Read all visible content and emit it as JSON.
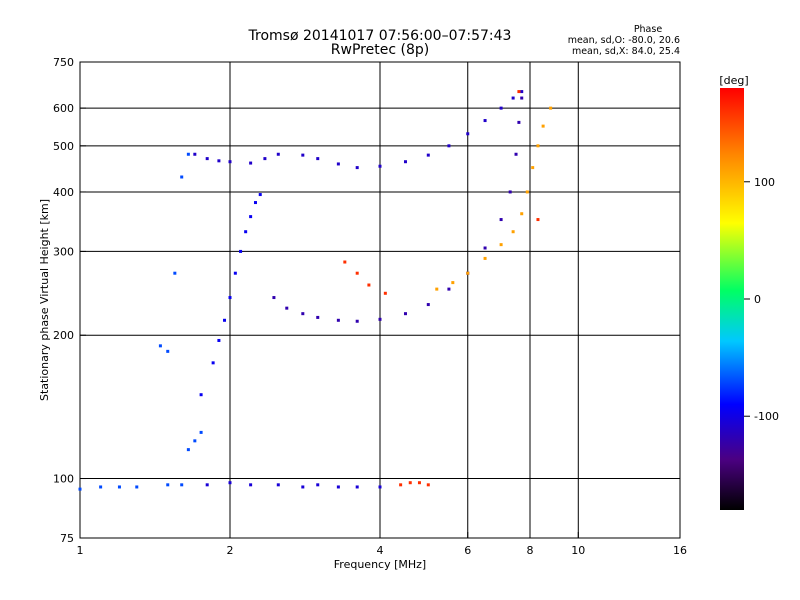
{
  "chart_data": {
    "type": "scatter",
    "title": "Tromsø 20141017 07:56:00–07:57:43",
    "subtitle": "RwPretec (8p)",
    "xlabel": "Frequency [MHz]",
    "ylabel": "Stationary phase Virtual Height [km]",
    "x_scale": "log2",
    "y_scale": "log",
    "xlim": [
      1,
      16
    ],
    "ylim": [
      75,
      750
    ],
    "x_ticks": [
      "1",
      "2",
      "4",
      "6",
      "8",
      "10",
      "16"
    ],
    "y_ticks": [
      "750",
      "600",
      "500",
      "400",
      "300",
      "200",
      "100",
      "75"
    ],
    "grid": true,
    "phase_stats": {
      "title": "Phase",
      "line1": "mean, sd,O:  -80.0, 20.6",
      "line2": "mean, sd,X:   84.0, 25.4"
    },
    "colorbar": {
      "unit": "[deg]",
      "range": [
        -180,
        180
      ],
      "ticks": [
        "100",
        "0",
        "-100"
      ]
    },
    "series": [
      {
        "name": "",
        "phase": -110,
        "points": [
          [
            1.7,
            480
          ],
          [
            1.8,
            470
          ],
          [
            1.9,
            465
          ],
          [
            2.0,
            463
          ],
          [
            2.2,
            460
          ],
          [
            2.35,
            470
          ],
          [
            2.5,
            480
          ],
          [
            2.8,
            478
          ],
          [
            3.0,
            470
          ],
          [
            3.3,
            458
          ],
          [
            3.6,
            450
          ],
          [
            4.0,
            453
          ],
          [
            4.5,
            463
          ],
          [
            5.0,
            478
          ],
          [
            5.5,
            500
          ],
          [
            6.0,
            530
          ],
          [
            6.5,
            565
          ],
          [
            7.0,
            600
          ],
          [
            7.4,
            630
          ],
          [
            7.7,
            650
          ]
        ]
      },
      {
        "name": "",
        "phase": -120,
        "points": [
          [
            2.45,
            240
          ],
          [
            2.6,
            228
          ],
          [
            2.8,
            222
          ],
          [
            3.0,
            218
          ],
          [
            3.3,
            215
          ],
          [
            3.6,
            214
          ],
          [
            4.0,
            216
          ],
          [
            4.5,
            222
          ],
          [
            5.0,
            232
          ],
          [
            5.5,
            250
          ],
          [
            6.0,
            270
          ],
          [
            6.5,
            305
          ],
          [
            7.0,
            350
          ],
          [
            7.3,
            400
          ],
          [
            7.5,
            480
          ],
          [
            7.6,
            560
          ],
          [
            7.7,
            630
          ]
        ]
      },
      {
        "name": "",
        "phase": -95,
        "points": [
          [
            1.75,
            150
          ],
          [
            1.85,
            175
          ],
          [
            1.9,
            195
          ],
          [
            1.95,
            215
          ],
          [
            2.0,
            240
          ],
          [
            2.05,
            270
          ],
          [
            2.1,
            300
          ],
          [
            2.15,
            330
          ],
          [
            2.2,
            355
          ],
          [
            2.25,
            380
          ],
          [
            2.3,
            395
          ]
        ]
      },
      {
        "name": "",
        "phase": -70,
        "points": [
          [
            1.0,
            95
          ],
          [
            1.1,
            96
          ],
          [
            1.2,
            96
          ],
          [
            1.3,
            96
          ],
          [
            1.5,
            97
          ],
          [
            1.6,
            97
          ],
          [
            1.65,
            115
          ],
          [
            1.7,
            120
          ],
          [
            1.75,
            125
          ],
          [
            1.45,
            190
          ],
          [
            1.5,
            185
          ],
          [
            1.55,
            270
          ],
          [
            1.6,
            430
          ],
          [
            1.65,
            480
          ]
        ]
      },
      {
        "name": "",
        "phase": -105,
        "points": [
          [
            1.8,
            97
          ],
          [
            2.0,
            98
          ],
          [
            2.2,
            97
          ],
          [
            2.5,
            97
          ],
          [
            2.8,
            96
          ],
          [
            3.0,
            97
          ],
          [
            3.3,
            96
          ],
          [
            3.6,
            96
          ],
          [
            4.0,
            96
          ]
        ]
      },
      {
        "name": "",
        "phase": 110,
        "points": [
          [
            5.2,
            250
          ],
          [
            5.6,
            258
          ],
          [
            6.0,
            270
          ],
          [
            6.5,
            290
          ],
          [
            7.0,
            310
          ],
          [
            7.4,
            330
          ],
          [
            7.7,
            360
          ],
          [
            7.9,
            400
          ],
          [
            8.1,
            450
          ],
          [
            8.3,
            500
          ],
          [
            8.5,
            550
          ],
          [
            8.8,
            600
          ]
        ]
      },
      {
        "name": "",
        "phase": 160,
        "points": [
          [
            3.4,
            285
          ],
          [
            3.6,
            270
          ],
          [
            3.8,
            255
          ],
          [
            4.1,
            245
          ],
          [
            4.4,
            97
          ],
          [
            4.6,
            98
          ],
          [
            4.8,
            98
          ],
          [
            5.0,
            97
          ],
          [
            7.6,
            650
          ],
          [
            8.3,
            350
          ]
        ]
      }
    ]
  }
}
